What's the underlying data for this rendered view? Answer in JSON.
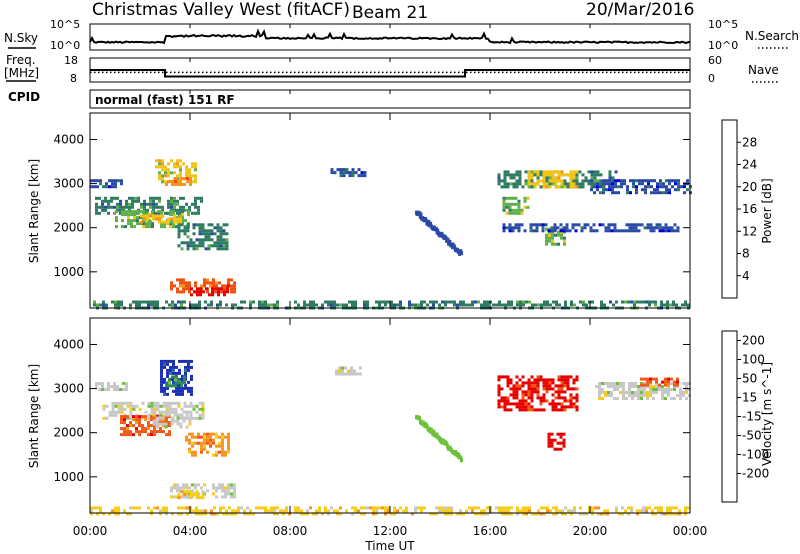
{
  "header": {
    "station": "Christmas Valley West (fitACF)",
    "beam": "Beam 21",
    "date": "20/Mar/2016"
  },
  "noise_panel": {
    "left_label": "N.Sky",
    "right_label": "N.Search",
    "tick_top": "10^5",
    "tick_bottom": "10^0",
    "right_tick_top": "10^5",
    "right_tick_bottom": "10^0"
  },
  "freq_panel": {
    "left_label_1": "Freq.",
    "left_label_2": "[MHz]",
    "right_label": "Nave",
    "left_tick_top": "18",
    "left_tick_bottom": "8",
    "right_tick_top": "60",
    "right_tick_bottom": "0",
    "freq_steps": [
      {
        "t": 0,
        "f": 13.0
      },
      {
        "t": 3.0,
        "f": 13.0
      },
      {
        "t": 3.0,
        "f": 10.3
      },
      {
        "t": 15.0,
        "f": 10.3
      },
      {
        "t": 15.0,
        "f": 13.0
      },
      {
        "t": 24.0,
        "f": 13.0
      }
    ],
    "nave_level": 24
  },
  "cpid": {
    "label": "CPID",
    "program": "normal (fast) 151 RF"
  },
  "axes": {
    "xlabel": "Time UT",
    "xticks": [
      "00:00",
      "04:00",
      "08:00",
      "12:00",
      "16:00",
      "20:00",
      "00:00"
    ],
    "xrange": [
      0,
      24
    ],
    "ylabel": "Slant Range [km]",
    "yticks": [
      "1000",
      "2000",
      "3000",
      "4000"
    ],
    "yrange": [
      180,
      4600
    ]
  },
  "chart_data": [
    {
      "type": "heatmap",
      "name": "power",
      "colorbar_label": "Power [dB]",
      "colorbar_ticks": [
        "4",
        "8",
        "12",
        "16",
        "20",
        "24",
        "28"
      ],
      "colors": [
        "#0000dd",
        "#2a4aa8",
        "#2f7a62",
        "#5fb04a",
        "#f0c419",
        "#f7941d",
        "#f0500f",
        "#e60000"
      ],
      "regions": [
        {
          "t0": 2.6,
          "t1": 4.2,
          "r0": 3050,
          "r1": 3550,
          "level": 4
        },
        {
          "t0": 3.0,
          "t1": 4.0,
          "r0": 2950,
          "r1": 3150,
          "level": 5
        },
        {
          "t0": 0.0,
          "t1": 1.3,
          "r0": 2950,
          "r1": 3100,
          "level": 1
        },
        {
          "t0": 0.2,
          "t1": 4.5,
          "r0": 2350,
          "r1": 2700,
          "level": 2
        },
        {
          "t0": 1.0,
          "t1": 4.0,
          "r0": 2050,
          "r1": 2400,
          "level": 3
        },
        {
          "t0": 2.0,
          "t1": 3.6,
          "r0": 2100,
          "r1": 2300,
          "level": 4
        },
        {
          "t0": 3.5,
          "t1": 5.5,
          "r0": 1500,
          "r1": 2100,
          "level": 2
        },
        {
          "t0": 3.2,
          "t1": 5.8,
          "r0": 550,
          "r1": 850,
          "level": 6
        },
        {
          "t0": 4.0,
          "t1": 5.5,
          "r0": 500,
          "r1": 650,
          "level": 7
        },
        {
          "t0": 9.5,
          "t1": 11.0,
          "r0": 3150,
          "r1": 3350,
          "level": 1
        },
        {
          "t0": 16.3,
          "t1": 21.0,
          "r0": 2900,
          "r1": 3300,
          "level": 2
        },
        {
          "t0": 17.5,
          "t1": 19.5,
          "r0": 2950,
          "r1": 3300,
          "level": 4
        },
        {
          "t0": 16.5,
          "t1": 17.5,
          "r0": 2350,
          "r1": 2700,
          "level": 3
        },
        {
          "t0": 18.2,
          "t1": 19.0,
          "r0": 1600,
          "r1": 2000,
          "level": 3
        },
        {
          "t0": 20.0,
          "t1": 24.0,
          "r0": 2800,
          "r1": 3100,
          "level": 1
        },
        {
          "t0": 16.5,
          "t1": 23.5,
          "r0": 1950,
          "r1": 2100,
          "level": 1
        },
        {
          "t0": 0.0,
          "t1": 24.0,
          "r0": 180,
          "r1": 350,
          "level": 2
        }
      ],
      "arcs": [
        {
          "t0": 13.0,
          "t1": 14.8,
          "r0": 2400,
          "r1": 1450,
          "level": 1
        }
      ]
    },
    {
      "type": "heatmap",
      "name": "velocity",
      "colorbar_label": "Velocity [m s^-1]",
      "colorbar_ticks": [
        "200",
        "100",
        "50",
        "15",
        "-15",
        "-50",
        "-100",
        "-200"
      ],
      "colors": [
        "#1b2fb5",
        "#2a6fa6",
        "#2f8a5a",
        "#6dc13c",
        "#c8c8c8",
        "#f7cd1d",
        "#f7941d",
        "#f05a14",
        "#e60000"
      ],
      "regions": [
        {
          "t0": 2.8,
          "t1": 4.1,
          "r0": 2900,
          "r1": 3650,
          "level": 0
        },
        {
          "t0": 3.0,
          "t1": 3.8,
          "r0": 3050,
          "r1": 3300,
          "level": 2
        },
        {
          "t0": 0.2,
          "t1": 1.5,
          "r0": 2950,
          "r1": 3150,
          "level": 4
        },
        {
          "t0": 0.5,
          "t1": 4.5,
          "r0": 2300,
          "r1": 2700,
          "level": 4
        },
        {
          "t0": 1.2,
          "t1": 3.2,
          "r0": 1950,
          "r1": 2400,
          "level": 7
        },
        {
          "t0": 2.5,
          "t1": 4.0,
          "r0": 2100,
          "r1": 2500,
          "level": 4
        },
        {
          "t0": 3.8,
          "t1": 5.5,
          "r0": 1500,
          "r1": 2000,
          "level": 6
        },
        {
          "t0": 3.2,
          "t1": 5.8,
          "r0": 550,
          "r1": 850,
          "level": 4
        },
        {
          "t0": 3.5,
          "t1": 4.5,
          "r0": 500,
          "r1": 700,
          "level": 5
        },
        {
          "t0": 9.8,
          "t1": 10.8,
          "r0": 3300,
          "r1": 3500,
          "level": 4
        },
        {
          "t0": 16.3,
          "t1": 19.5,
          "r0": 2500,
          "r1": 3300,
          "level": 8
        },
        {
          "t0": 18.3,
          "t1": 19.0,
          "r0": 1600,
          "r1": 2000,
          "level": 8
        },
        {
          "t0": 20.2,
          "t1": 24.0,
          "r0": 2800,
          "r1": 3150,
          "level": 4
        },
        {
          "t0": 22.0,
          "t1": 23.5,
          "r0": 3050,
          "r1": 3250,
          "level": 7
        },
        {
          "t0": 0.0,
          "t1": 24.0,
          "r0": 180,
          "r1": 330,
          "level": 5
        }
      ],
      "arcs": [
        {
          "t0": 13.0,
          "t1": 14.8,
          "r0": 2400,
          "r1": 1450,
          "level": 3
        }
      ]
    }
  ]
}
